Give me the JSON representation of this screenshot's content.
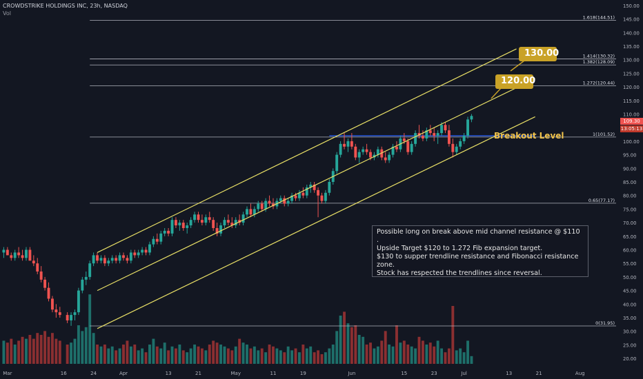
{
  "header": {
    "title": "CROWDSTRIKE HOLDINGS INC, 23h, NASDAQ",
    "vol_label": "Vol"
  },
  "colors": {
    "background": "#131722",
    "up": "#26a69a",
    "down": "#ef5350",
    "vol_up": "#1e6f6a",
    "vol_down": "#8b2f31",
    "channel": "#e8df66",
    "fib": "#b2b5be",
    "breakout_line": "#2962ff",
    "callout": "#c9a227"
  },
  "annotations": {
    "note": "Possible long on break above mid channel resistance @ $110 .\nUpside Target $120 to 1.272 Fib expansion target.\n$130 to supper trendline resistance and Fibonacci resistance zone.\nStock has respected the trendlines since reversal.",
    "callout_130": "130.00",
    "callout_120": "120.00",
    "breakout": "Breakout Level"
  },
  "price_tags": {
    "last": "109.30",
    "countdown": "13:05:13"
  },
  "chart_data": {
    "type": "candlestick",
    "title": "CROWDSTRIKE HOLDINGS INC, 23h, NASDAQ",
    "y_axis": {
      "ticks": [
        20,
        25,
        30,
        35,
        40,
        45,
        50,
        55,
        60,
        65,
        70,
        75,
        80,
        85,
        90,
        95,
        100,
        105,
        110,
        115,
        120,
        125,
        130,
        135,
        140,
        145,
        150
      ],
      "tick_labels": [
        "20.00",
        "25.00",
        "30.00",
        "35.00",
        "40.00",
        "45.00",
        "50.00",
        "55.00",
        "60.00",
        "65.00",
        "70.00",
        "75.00",
        "80.00",
        "85.00",
        "90.00",
        "95.00",
        "100.00",
        "105.00",
        "110.00",
        "115.00",
        "120.00",
        "125.00",
        "130.00",
        "135.00",
        "140.00",
        "145.00",
        "150.00"
      ],
      "range": [
        18,
        152
      ]
    },
    "x_axis": {
      "labels": [
        "Mar",
        "16",
        "24",
        "Apr",
        "13",
        "21",
        "May",
        "11",
        "19",
        "Jun",
        "15",
        "23",
        "Jul",
        "13",
        "21",
        "Aug"
      ],
      "label_days": [
        0,
        15,
        23,
        31,
        43,
        51,
        61,
        71,
        79,
        92,
        106,
        114,
        122,
        134,
        142,
        153
      ],
      "range_days": [
        -2,
        163
      ]
    },
    "fib_levels": [
      {
        "label": "1.618(144.51)",
        "value": 144.51
      },
      {
        "label": "1.414(130.32)",
        "value": 130.32
      },
      {
        "label": "1.382(128.09)",
        "value": 128.09
      },
      {
        "label": "1.272(120.44)",
        "value": 120.44
      },
      {
        "label": "1(101.52)",
        "value": 101.52
      },
      {
        "label": "0.65(77.17)",
        "value": 77.17
      },
      {
        "label": "0(31.95)",
        "value": 31.95
      }
    ],
    "channel_lines": [
      {
        "name": "upper",
        "start": {
          "day": 24,
          "value": 59
        },
        "end": {
          "day": 136,
          "value": 134
        }
      },
      {
        "name": "middle",
        "start": {
          "day": 24,
          "value": 45
        },
        "end": {
          "day": 141,
          "value": 123
        }
      },
      {
        "name": "lower",
        "start": {
          "day": 24,
          "value": 31
        },
        "end": {
          "day": 141,
          "value": 109
        }
      }
    ],
    "breakout_level": {
      "value": 102,
      "start_day": 86,
      "end_day": 141
    },
    "volume_scale_max": 50,
    "candles": [
      {
        "day": -1,
        "o": 59,
        "h": 61,
        "l": 57,
        "c": 60,
        "v": 12
      },
      {
        "day": 0,
        "o": 60,
        "h": 61,
        "l": 58,
        "c": 58,
        "v": 11
      },
      {
        "day": 1,
        "o": 58,
        "h": 59,
        "l": 56,
        "c": 57,
        "v": 13
      },
      {
        "day": 2,
        "o": 57,
        "h": 60,
        "l": 56,
        "c": 59,
        "v": 10
      },
      {
        "day": 3,
        "o": 59,
        "h": 61,
        "l": 57,
        "c": 58,
        "v": 12
      },
      {
        "day": 4,
        "o": 58,
        "h": 60,
        "l": 56,
        "c": 57,
        "v": 14
      },
      {
        "day": 5,
        "o": 57,
        "h": 61,
        "l": 56,
        "c": 60,
        "v": 13
      },
      {
        "day": 6,
        "o": 60,
        "h": 61,
        "l": 56,
        "c": 56,
        "v": 15
      },
      {
        "day": 7,
        "o": 56,
        "h": 58,
        "l": 54,
        "c": 55,
        "v": 13
      },
      {
        "day": 8,
        "o": 55,
        "h": 57,
        "l": 51,
        "c": 52,
        "v": 16
      },
      {
        "day": 9,
        "o": 52,
        "h": 54,
        "l": 48,
        "c": 49,
        "v": 15
      },
      {
        "day": 10,
        "o": 49,
        "h": 50,
        "l": 45,
        "c": 46,
        "v": 17
      },
      {
        "day": 11,
        "o": 46,
        "h": 48,
        "l": 41,
        "c": 42,
        "v": 14
      },
      {
        "day": 12,
        "o": 42,
        "h": 43,
        "l": 37,
        "c": 38,
        "v": 16
      },
      {
        "day": 13,
        "o": 38,
        "h": 40,
        "l": 35,
        "c": 37,
        "v": 13
      },
      {
        "day": 14,
        "o": 37,
        "h": 39,
        "l": 35,
        "c": 36,
        "v": 12
      },
      {
        "day": 16,
        "o": 36,
        "h": 37,
        "l": 33,
        "c": 34,
        "v": 10
      },
      {
        "day": 17,
        "o": 34,
        "h": 37,
        "l": 32,
        "c": 36,
        "v": 11
      },
      {
        "day": 18,
        "o": 36,
        "h": 38,
        "l": 34,
        "c": 37,
        "v": 13
      },
      {
        "day": 19,
        "o": 37,
        "h": 46,
        "l": 36,
        "c": 45,
        "v": 20
      },
      {
        "day": 20,
        "o": 45,
        "h": 50,
        "l": 44,
        "c": 49,
        "v": 17
      },
      {
        "day": 21,
        "o": 49,
        "h": 52,
        "l": 47,
        "c": 50,
        "v": 19
      },
      {
        "day": 22,
        "o": 50,
        "h": 56,
        "l": 49,
        "c": 55,
        "v": 36
      },
      {
        "day": 23,
        "o": 55,
        "h": 59,
        "l": 54,
        "c": 58,
        "v": 16
      },
      {
        "day": 24,
        "o": 58,
        "h": 59,
        "l": 55,
        "c": 56,
        "v": 10
      },
      {
        "day": 25,
        "o": 56,
        "h": 58,
        "l": 55,
        "c": 57,
        "v": 9
      },
      {
        "day": 26,
        "o": 57,
        "h": 58,
        "l": 54,
        "c": 55,
        "v": 10
      },
      {
        "day": 27,
        "o": 55,
        "h": 57,
        "l": 54,
        "c": 56,
        "v": 8
      },
      {
        "day": 28,
        "o": 56,
        "h": 58,
        "l": 55,
        "c": 57,
        "v": 9
      },
      {
        "day": 29,
        "o": 57,
        "h": 58,
        "l": 55,
        "c": 56,
        "v": 7
      },
      {
        "day": 30,
        "o": 56,
        "h": 59,
        "l": 55,
        "c": 58,
        "v": 8
      },
      {
        "day": 31,
        "o": 58,
        "h": 59,
        "l": 56,
        "c": 57,
        "v": 10
      },
      {
        "day": 32,
        "o": 57,
        "h": 58,
        "l": 55,
        "c": 56,
        "v": 12
      },
      {
        "day": 33,
        "o": 56,
        "h": 60,
        "l": 55,
        "c": 59,
        "v": 9
      },
      {
        "day": 34,
        "o": 59,
        "h": 60,
        "l": 57,
        "c": 58,
        "v": 10
      },
      {
        "day": 35,
        "o": 58,
        "h": 60,
        "l": 57,
        "c": 59,
        "v": 7
      },
      {
        "day": 36,
        "o": 59,
        "h": 61,
        "l": 58,
        "c": 60,
        "v": 8
      },
      {
        "day": 37,
        "o": 60,
        "h": 61,
        "l": 58,
        "c": 59,
        "v": 6
      },
      {
        "day": 38,
        "o": 59,
        "h": 63,
        "l": 58,
        "c": 62,
        "v": 10
      },
      {
        "day": 39,
        "o": 62,
        "h": 65,
        "l": 61,
        "c": 64,
        "v": 13
      },
      {
        "day": 40,
        "o": 64,
        "h": 66,
        "l": 62,
        "c": 63,
        "v": 9
      },
      {
        "day": 41,
        "o": 63,
        "h": 67,
        "l": 62,
        "c": 66,
        "v": 8
      },
      {
        "day": 42,
        "o": 66,
        "h": 68,
        "l": 65,
        "c": 67,
        "v": 11
      },
      {
        "day": 43,
        "o": 67,
        "h": 68,
        "l": 65,
        "c": 66,
        "v": 7
      },
      {
        "day": 44,
        "o": 66,
        "h": 72,
        "l": 65,
        "c": 71,
        "v": 9
      },
      {
        "day": 45,
        "o": 71,
        "h": 72,
        "l": 68,
        "c": 69,
        "v": 8
      },
      {
        "day": 46,
        "o": 69,
        "h": 71,
        "l": 67,
        "c": 70,
        "v": 10
      },
      {
        "day": 47,
        "o": 70,
        "h": 71,
        "l": 67,
        "c": 68,
        "v": 7
      },
      {
        "day": 48,
        "o": 68,
        "h": 70,
        "l": 66,
        "c": 69,
        "v": 6
      },
      {
        "day": 49,
        "o": 69,
        "h": 72,
        "l": 68,
        "c": 71,
        "v": 8
      },
      {
        "day": 50,
        "o": 71,
        "h": 74,
        "l": 70,
        "c": 73,
        "v": 10
      },
      {
        "day": 51,
        "o": 73,
        "h": 74,
        "l": 70,
        "c": 71,
        "v": 9
      },
      {
        "day": 52,
        "o": 71,
        "h": 73,
        "l": 69,
        "c": 70,
        "v": 8
      },
      {
        "day": 53,
        "o": 70,
        "h": 73,
        "l": 69,
        "c": 72,
        "v": 7
      },
      {
        "day": 54,
        "o": 72,
        "h": 74,
        "l": 70,
        "c": 71,
        "v": 10
      },
      {
        "day": 55,
        "o": 71,
        "h": 72,
        "l": 67,
        "c": 68,
        "v": 12
      },
      {
        "day": 56,
        "o": 68,
        "h": 70,
        "l": 65,
        "c": 66,
        "v": 11
      },
      {
        "day": 57,
        "o": 66,
        "h": 70,
        "l": 65,
        "c": 69,
        "v": 10
      },
      {
        "day": 58,
        "o": 69,
        "h": 72,
        "l": 68,
        "c": 71,
        "v": 9
      },
      {
        "day": 59,
        "o": 71,
        "h": 73,
        "l": 69,
        "c": 70,
        "v": 8
      },
      {
        "day": 60,
        "o": 70,
        "h": 72,
        "l": 68,
        "c": 69,
        "v": 7
      },
      {
        "day": 61,
        "o": 69,
        "h": 72,
        "l": 68,
        "c": 71,
        "v": 9
      },
      {
        "day": 62,
        "o": 71,
        "h": 73,
        "l": 69,
        "c": 70,
        "v": 13
      },
      {
        "day": 63,
        "o": 70,
        "h": 74,
        "l": 69,
        "c": 73,
        "v": 11
      },
      {
        "day": 64,
        "o": 73,
        "h": 76,
        "l": 72,
        "c": 75,
        "v": 10
      },
      {
        "day": 65,
        "o": 75,
        "h": 77,
        "l": 72,
        "c": 73,
        "v": 8
      },
      {
        "day": 66,
        "o": 73,
        "h": 76,
        "l": 72,
        "c": 75,
        "v": 9
      },
      {
        "day": 67,
        "o": 75,
        "h": 78,
        "l": 74,
        "c": 77,
        "v": 7
      },
      {
        "day": 68,
        "o": 77,
        "h": 78,
        "l": 74,
        "c": 75,
        "v": 8
      },
      {
        "day": 69,
        "o": 75,
        "h": 79,
        "l": 74,
        "c": 78,
        "v": 6
      },
      {
        "day": 70,
        "o": 78,
        "h": 80,
        "l": 76,
        "c": 77,
        "v": 10
      },
      {
        "day": 71,
        "o": 77,
        "h": 79,
        "l": 75,
        "c": 76,
        "v": 9
      },
      {
        "day": 72,
        "o": 76,
        "h": 79,
        "l": 75,
        "c": 78,
        "v": 8
      },
      {
        "day": 73,
        "o": 78,
        "h": 80,
        "l": 77,
        "c": 79,
        "v": 7
      },
      {
        "day": 74,
        "o": 79,
        "h": 80,
        "l": 76,
        "c": 77,
        "v": 6
      },
      {
        "day": 75,
        "o": 77,
        "h": 79,
        "l": 76,
        "c": 78,
        "v": 9
      },
      {
        "day": 76,
        "o": 78,
        "h": 81,
        "l": 77,
        "c": 80,
        "v": 7
      },
      {
        "day": 77,
        "o": 80,
        "h": 81,
        "l": 78,
        "c": 79,
        "v": 8
      },
      {
        "day": 78,
        "o": 79,
        "h": 82,
        "l": 78,
        "c": 81,
        "v": 6
      },
      {
        "day": 79,
        "o": 81,
        "h": 83,
        "l": 79,
        "c": 80,
        "v": 10
      },
      {
        "day": 80,
        "o": 80,
        "h": 84,
        "l": 79,
        "c": 83,
        "v": 8
      },
      {
        "day": 81,
        "o": 83,
        "h": 85,
        "l": 81,
        "c": 84,
        "v": 9
      },
      {
        "day": 82,
        "o": 84,
        "h": 85,
        "l": 81,
        "c": 82,
        "v": 6
      },
      {
        "day": 83,
        "o": 82,
        "h": 83,
        "l": 72,
        "c": 80,
        "v": 7
      },
      {
        "day": 84,
        "o": 80,
        "h": 81,
        "l": 77,
        "c": 78,
        "v": 5
      },
      {
        "day": 85,
        "o": 78,
        "h": 82,
        "l": 77,
        "c": 81,
        "v": 6
      },
      {
        "day": 86,
        "o": 81,
        "h": 86,
        "l": 80,
        "c": 85,
        "v": 8
      },
      {
        "day": 87,
        "o": 85,
        "h": 90,
        "l": 84,
        "c": 89,
        "v": 10
      },
      {
        "day": 88,
        "o": 89,
        "h": 96,
        "l": 88,
        "c": 95,
        "v": 17
      },
      {
        "day": 89,
        "o": 95,
        "h": 100,
        "l": 94,
        "c": 99,
        "v": 25
      },
      {
        "day": 90,
        "o": 99,
        "h": 103,
        "l": 97,
        "c": 98,
        "v": 27
      },
      {
        "day": 91,
        "o": 98,
        "h": 101,
        "l": 96,
        "c": 100,
        "v": 21
      },
      {
        "day": 92,
        "o": 100,
        "h": 103,
        "l": 97,
        "c": 98,
        "v": 19
      },
      {
        "day": 93,
        "o": 98,
        "h": 99,
        "l": 93,
        "c": 94,
        "v": 20
      },
      {
        "day": 94,
        "o": 94,
        "h": 97,
        "l": 92,
        "c": 96,
        "v": 15
      },
      {
        "day": 95,
        "o": 96,
        "h": 98,
        "l": 95,
        "c": 97,
        "v": 14
      },
      {
        "day": 96,
        "o": 97,
        "h": 99,
        "l": 95,
        "c": 96,
        "v": 10
      },
      {
        "day": 97,
        "o": 96,
        "h": 97,
        "l": 93,
        "c": 94,
        "v": 11
      },
      {
        "day": 98,
        "o": 94,
        "h": 96,
        "l": 93,
        "c": 95,
        "v": 8
      },
      {
        "day": 99,
        "o": 95,
        "h": 98,
        "l": 94,
        "c": 97,
        "v": 9
      },
      {
        "day": 100,
        "o": 97,
        "h": 98,
        "l": 93,
        "c": 94,
        "v": 12
      },
      {
        "day": 101,
        "o": 94,
        "h": 96,
        "l": 92,
        "c": 93,
        "v": 17
      },
      {
        "day": 102,
        "o": 93,
        "h": 96,
        "l": 92,
        "c": 95,
        "v": 10
      },
      {
        "day": 103,
        "o": 95,
        "h": 99,
        "l": 94,
        "c": 98,
        "v": 9
      },
      {
        "day": 104,
        "o": 98,
        "h": 100,
        "l": 96,
        "c": 97,
        "v": 20
      },
      {
        "day": 105,
        "o": 97,
        "h": 102,
        "l": 96,
        "c": 101,
        "v": 11
      },
      {
        "day": 106,
        "o": 101,
        "h": 103,
        "l": 99,
        "c": 100,
        "v": 12
      },
      {
        "day": 107,
        "o": 100,
        "h": 101,
        "l": 95,
        "c": 96,
        "v": 10
      },
      {
        "day": 108,
        "o": 96,
        "h": 100,
        "l": 95,
        "c": 99,
        "v": 9
      },
      {
        "day": 109,
        "o": 99,
        "h": 104,
        "l": 98,
        "c": 103,
        "v": 8
      },
      {
        "day": 110,
        "o": 103,
        "h": 106,
        "l": 101,
        "c": 102,
        "v": 14
      },
      {
        "day": 111,
        "o": 102,
        "h": 104,
        "l": 100,
        "c": 101,
        "v": 12
      },
      {
        "day": 112,
        "o": 101,
        "h": 105,
        "l": 100,
        "c": 104,
        "v": 10
      },
      {
        "day": 113,
        "o": 104,
        "h": 106,
        "l": 102,
        "c": 103,
        "v": 11
      },
      {
        "day": 114,
        "o": 103,
        "h": 105,
        "l": 100,
        "c": 102,
        "v": 9
      },
      {
        "day": 115,
        "o": 102,
        "h": 104,
        "l": 99,
        "c": 103,
        "v": 12
      },
      {
        "day": 116,
        "o": 103,
        "h": 107,
        "l": 102,
        "c": 106,
        "v": 8
      },
      {
        "day": 117,
        "o": 106,
        "h": 107,
        "l": 103,
        "c": 104,
        "v": 6
      },
      {
        "day": 118,
        "o": 104,
        "h": 106,
        "l": 98,
        "c": 99,
        "v": 8
      },
      {
        "day": 119,
        "o": 99,
        "h": 101,
        "l": 94,
        "c": 96,
        "v": 30
      },
      {
        "day": 120,
        "o": 96,
        "h": 99,
        "l": 95,
        "c": 98,
        "v": 7
      },
      {
        "day": 121,
        "o": 98,
        "h": 101,
        "l": 97,
        "c": 100,
        "v": 8
      },
      {
        "day": 122,
        "o": 100,
        "h": 103,
        "l": 99,
        "c": 102,
        "v": 6
      },
      {
        "day": 123,
        "o": 102,
        "h": 109,
        "l": 101,
        "c": 108,
        "v": 12
      },
      {
        "day": 124,
        "o": 108,
        "h": 110,
        "l": 107,
        "c": 109.3,
        "v": 4
      }
    ]
  }
}
